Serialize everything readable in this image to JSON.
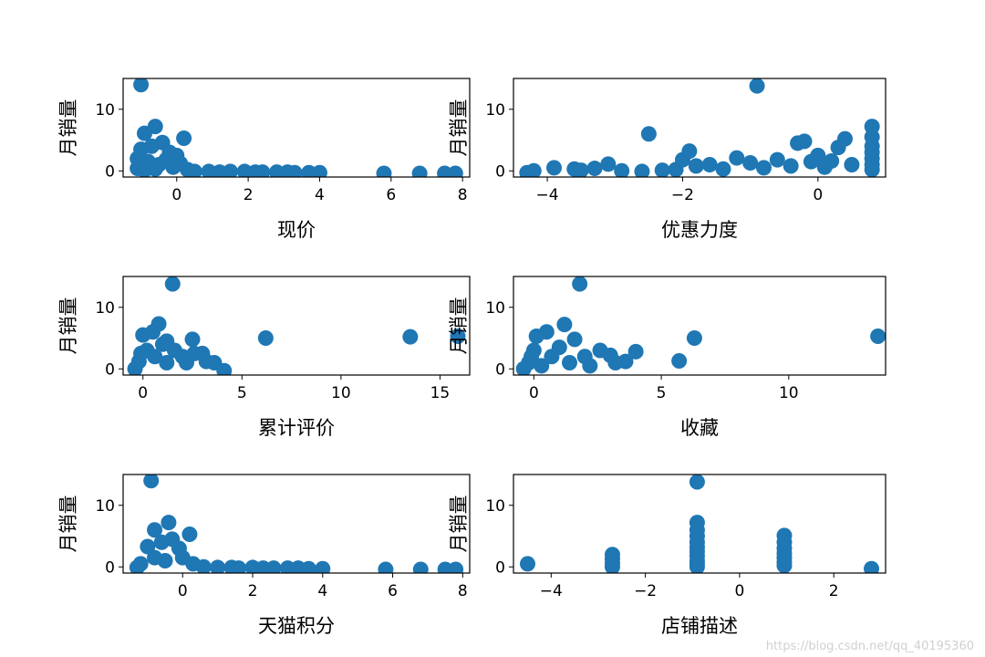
{
  "watermark": "https://blog.csdn.net/qq_40195360",
  "chart_data": [
    {
      "type": "scatter",
      "xlabel": "现价",
      "ylabel": "月销量",
      "xlim": [
        -1.5,
        8.2
      ],
      "ylim": [
        -1,
        15
      ],
      "xticks": [
        0,
        2,
        4,
        6,
        8
      ],
      "yticks": [
        0,
        10
      ],
      "color": "#1f77b4",
      "points": [
        [
          -1.0,
          14
        ],
        [
          -0.6,
          7.2
        ],
        [
          -0.9,
          6.1
        ],
        [
          0.2,
          5.3
        ],
        [
          -0.4,
          4.6
        ],
        [
          -1.0,
          3.5
        ],
        [
          -0.7,
          4.0
        ],
        [
          -0.2,
          3.0
        ],
        [
          0.0,
          2.5
        ],
        [
          -1.1,
          2.0
        ],
        [
          -0.8,
          1.5
        ],
        [
          -0.5,
          1.0
        ],
        [
          -0.3,
          1.8
        ],
        [
          0.1,
          1.2
        ],
        [
          -1.1,
          0.4
        ],
        [
          -0.9,
          0.1
        ],
        [
          -0.6,
          0.3
        ],
        [
          -0.1,
          0.6
        ],
        [
          0.3,
          0.2
        ],
        [
          0.5,
          -0.1
        ],
        [
          0.9,
          -0.1
        ],
        [
          1.2,
          -0.2
        ],
        [
          1.5,
          -0.1
        ],
        [
          1.9,
          -0.1
        ],
        [
          2.2,
          -0.2
        ],
        [
          2.4,
          -0.2
        ],
        [
          2.8,
          -0.2
        ],
        [
          3.1,
          -0.2
        ],
        [
          3.3,
          -0.3
        ],
        [
          3.7,
          -0.3
        ],
        [
          4.0,
          -0.3
        ],
        [
          5.8,
          -0.4
        ],
        [
          6.8,
          -0.4
        ],
        [
          7.5,
          -0.4
        ],
        [
          7.8,
          -0.4
        ]
      ]
    },
    {
      "type": "scatter",
      "xlabel": "优惠力度",
      "ylabel": "月销量",
      "xlim": [
        -4.5,
        1.0
      ],
      "ylim": [
        -1,
        15
      ],
      "xticks": [
        -4,
        -2,
        0
      ],
      "yticks": [
        0,
        10
      ],
      "color": "#1f77b4",
      "points": [
        [
          -4.3,
          -0.3
        ],
        [
          -4.2,
          0.0
        ],
        [
          -3.9,
          0.5
        ],
        [
          -3.6,
          0.3
        ],
        [
          -3.5,
          0.1
        ],
        [
          -3.3,
          0.4
        ],
        [
          -3.1,
          1.1
        ],
        [
          -2.9,
          0.0
        ],
        [
          -2.6,
          -0.1
        ],
        [
          -2.5,
          6.0
        ],
        [
          -2.3,
          0.1
        ],
        [
          -2.1,
          0.2
        ],
        [
          -2.0,
          1.8
        ],
        [
          -1.9,
          3.2
        ],
        [
          -1.8,
          0.8
        ],
        [
          -1.6,
          1.0
        ],
        [
          -1.4,
          0.3
        ],
        [
          -1.2,
          2.1
        ],
        [
          -1.0,
          1.3
        ],
        [
          -0.9,
          13.8
        ],
        [
          -0.8,
          0.5
        ],
        [
          -0.6,
          1.8
        ],
        [
          -0.4,
          0.8
        ],
        [
          -0.3,
          4.5
        ],
        [
          -0.2,
          4.8
        ],
        [
          -0.1,
          1.5
        ],
        [
          0.0,
          2.5
        ],
        [
          0.1,
          0.6
        ],
        [
          0.2,
          1.6
        ],
        [
          0.3,
          3.8
        ],
        [
          0.4,
          5.2
        ],
        [
          0.5,
          1.0
        ],
        [
          0.8,
          7.2
        ],
        [
          0.8,
          5.5
        ],
        [
          0.8,
          4.0
        ],
        [
          0.8,
          3.0
        ],
        [
          0.8,
          2.0
        ],
        [
          0.8,
          1.0
        ],
        [
          0.8,
          0.2
        ]
      ]
    },
    {
      "type": "scatter",
      "xlabel": "累计评价",
      "ylabel": "月销量",
      "xlim": [
        -1.0,
        16.5
      ],
      "ylim": [
        -1,
        15
      ],
      "xticks": [
        0,
        5,
        10,
        15
      ],
      "yticks": [
        0,
        10
      ],
      "color": "#1f77b4",
      "points": [
        [
          -0.4,
          0.0
        ],
        [
          -0.2,
          1.2
        ],
        [
          -0.1,
          2.5
        ],
        [
          0.0,
          5.5
        ],
        [
          0.2,
          3.0
        ],
        [
          0.5,
          6.0
        ],
        [
          0.8,
          7.3
        ],
        [
          0.6,
          2.0
        ],
        [
          1.0,
          4.0
        ],
        [
          1.2,
          1.0
        ],
        [
          1.5,
          13.8
        ],
        [
          1.6,
          3.0
        ],
        [
          1.2,
          4.5
        ],
        [
          2.0,
          2.0
        ],
        [
          2.2,
          1.0
        ],
        [
          2.5,
          4.8
        ],
        [
          2.6,
          2.5
        ],
        [
          3.0,
          2.5
        ],
        [
          3.2,
          1.2
        ],
        [
          3.6,
          1.0
        ],
        [
          4.1,
          -0.3
        ],
        [
          6.2,
          5.0
        ],
        [
          13.5,
          5.2
        ],
        [
          15.9,
          5.3
        ]
      ]
    },
    {
      "type": "scatter",
      "xlabel": "收藏",
      "ylabel": "月销量",
      "xlim": [
        -0.8,
        13.8
      ],
      "ylim": [
        -1,
        15
      ],
      "xticks": [
        0,
        5,
        10
      ],
      "yticks": [
        0,
        10
      ],
      "color": "#1f77b4",
      "points": [
        [
          -0.4,
          0.0
        ],
        [
          -0.2,
          1.0
        ],
        [
          -0.1,
          2.0
        ],
        [
          0.0,
          3.0
        ],
        [
          0.1,
          5.3
        ],
        [
          0.3,
          0.5
        ],
        [
          0.5,
          6.0
        ],
        [
          0.7,
          2.0
        ],
        [
          1.0,
          3.5
        ],
        [
          1.2,
          7.2
        ],
        [
          1.4,
          1.0
        ],
        [
          1.6,
          4.8
        ],
        [
          1.8,
          13.8
        ],
        [
          2.0,
          2.0
        ],
        [
          2.2,
          0.5
        ],
        [
          2.6,
          3.0
        ],
        [
          3.0,
          2.2
        ],
        [
          3.2,
          1.0
        ],
        [
          3.6,
          1.2
        ],
        [
          4.0,
          2.8
        ],
        [
          5.7,
          1.3
        ],
        [
          6.3,
          5.0
        ],
        [
          13.5,
          5.3
        ]
      ]
    },
    {
      "type": "scatter",
      "xlabel": "天猫积分",
      "ylabel": "月销量",
      "xlim": [
        -1.7,
        8.2
      ],
      "ylim": [
        -1,
        15
      ],
      "xticks": [
        0,
        2,
        4,
        6,
        8
      ],
      "yticks": [
        0,
        10
      ],
      "color": "#1f77b4",
      "points": [
        [
          -0.9,
          14
        ],
        [
          -0.4,
          7.2
        ],
        [
          -0.8,
          6.0
        ],
        [
          0.2,
          5.3
        ],
        [
          -0.3,
          4.5
        ],
        [
          -1.0,
          3.3
        ],
        [
          -0.6,
          4.0
        ],
        [
          -0.1,
          3.0
        ],
        [
          -0.8,
          1.5
        ],
        [
          -1.2,
          0.5
        ],
        [
          -1.3,
          -0.1
        ],
        [
          -0.5,
          1.0
        ],
        [
          0.0,
          1.5
        ],
        [
          0.3,
          0.5
        ],
        [
          0.6,
          0.0
        ],
        [
          1.0,
          -0.1
        ],
        [
          1.4,
          -0.1
        ],
        [
          1.6,
          -0.2
        ],
        [
          2.0,
          -0.1
        ],
        [
          2.3,
          -0.2
        ],
        [
          2.6,
          -0.2
        ],
        [
          3.0,
          -0.2
        ],
        [
          3.3,
          -0.2
        ],
        [
          3.6,
          -0.3
        ],
        [
          4.0,
          -0.3
        ],
        [
          5.8,
          -0.4
        ],
        [
          6.8,
          -0.4
        ],
        [
          7.5,
          -0.4
        ],
        [
          7.8,
          -0.4
        ]
      ]
    },
    {
      "type": "scatter",
      "xlabel": "店铺描述",
      "ylabel": "月销量",
      "xlim": [
        -4.8,
        3.1
      ],
      "ylim": [
        -1,
        15
      ],
      "xticks": [
        -4,
        -2,
        0,
        2
      ],
      "yticks": [
        0,
        10
      ],
      "color": "#1f77b4",
      "points": [
        [
          -4.5,
          0.5
        ],
        [
          -2.7,
          2.0
        ],
        [
          -2.7,
          1.3
        ],
        [
          -2.7,
          0.6
        ],
        [
          -2.7,
          0.0
        ],
        [
          -0.9,
          13.8
        ],
        [
          -0.9,
          7.2
        ],
        [
          -0.9,
          6.0
        ],
        [
          -0.9,
          5.0
        ],
        [
          -0.9,
          4.0
        ],
        [
          -0.9,
          3.2
        ],
        [
          -0.9,
          2.5
        ],
        [
          -0.9,
          1.8
        ],
        [
          -0.9,
          1.0
        ],
        [
          -0.9,
          0.5
        ],
        [
          -0.9,
          0.0
        ],
        [
          0.95,
          5.1
        ],
        [
          0.95,
          4.0
        ],
        [
          0.95,
          3.0
        ],
        [
          0.95,
          2.2
        ],
        [
          0.95,
          1.5
        ],
        [
          0.95,
          0.8
        ],
        [
          0.95,
          0.2
        ],
        [
          2.8,
          -0.3
        ]
      ]
    }
  ]
}
